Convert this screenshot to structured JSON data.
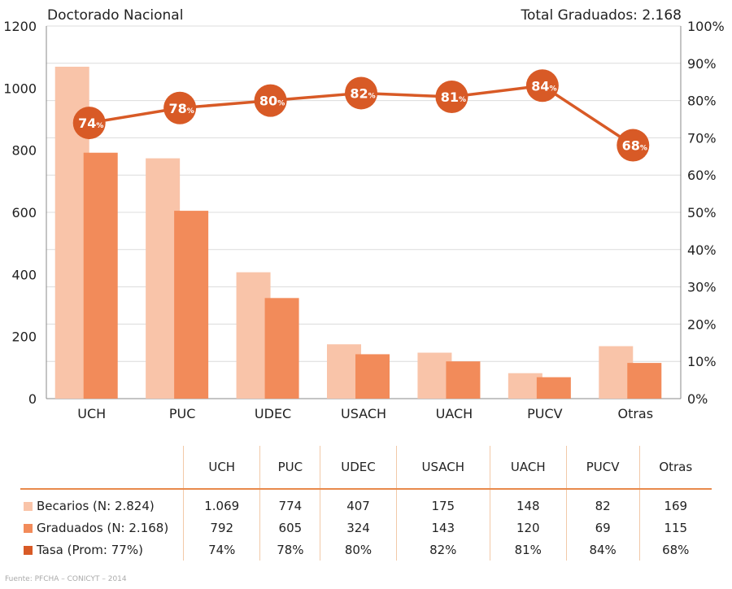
{
  "header": {
    "title": "Doctorado Nacional",
    "total": "Total Graduados: 2.168"
  },
  "chart_data": {
    "type": "bar",
    "categories": [
      "UCH",
      "PUC",
      "UDEC",
      "USACH",
      "UACH",
      "PUCV",
      "Otras"
    ],
    "series": [
      {
        "name": "Becarios (N: 2.824)",
        "values": [
          1069,
          774,
          407,
          175,
          148,
          82,
          169
        ],
        "color": "#f9c4a9",
        "axis": "left"
      },
      {
        "name": "Graduados (N: 2.168)",
        "values": [
          792,
          605,
          324,
          143,
          120,
          69,
          115
        ],
        "color": "#f28b5a",
        "axis": "left"
      },
      {
        "name": "Tasa (Prom: 77%)",
        "type": "line",
        "values": [
          74,
          78,
          80,
          82,
          81,
          84,
          68
        ],
        "color": "#d85a26",
        "axis": "right"
      }
    ],
    "ylim": [
      0,
      1200
    ],
    "yticks": [
      "0",
      "200",
      "400",
      "600",
      "800",
      "1000",
      "1200"
    ],
    "y2lim": [
      0,
      100
    ],
    "y2ticks": [
      "0%",
      "10%",
      "20%",
      "30%",
      "40%",
      "50%",
      "60%",
      "70%",
      "80%",
      "90%",
      "100%"
    ],
    "grid": true,
    "legend": "table-below"
  },
  "table": {
    "columns": [
      "UCH",
      "PUC",
      "UDEC",
      "USACH",
      "UACH",
      "PUCV",
      "Otras"
    ],
    "rows": [
      {
        "label": "Becarios (N: 2.824)",
        "color": "#f9c4a9",
        "values": [
          "1.069",
          "774",
          "407",
          "175",
          "148",
          "82",
          "169"
        ]
      },
      {
        "label": "Graduados (N: 2.168)",
        "color": "#f28b5a",
        "values": [
          "792",
          "605",
          "324",
          "143",
          "120",
          "69",
          "115"
        ]
      },
      {
        "label": "Tasa (Prom: 77%)",
        "color": "#d85a26",
        "values": [
          "74%",
          "78%",
          "80%",
          "82%",
          "81%",
          "84%",
          "68%"
        ]
      }
    ]
  },
  "footer": {
    "source": "Fuente: PFCHA – CONICYT – 2014"
  }
}
